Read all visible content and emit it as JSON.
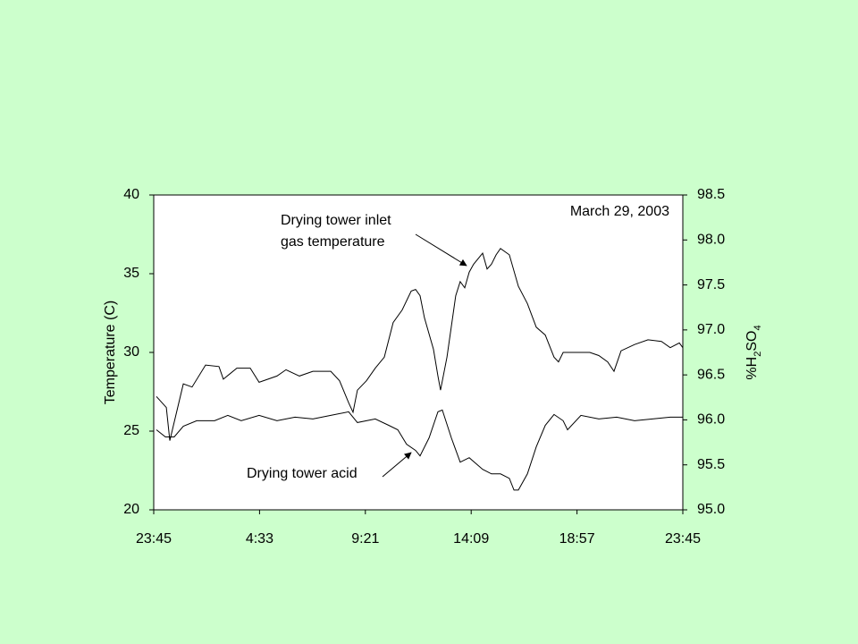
{
  "chart_data": {
    "type": "line",
    "x_axis_kind": "hours",
    "xlim": [
      0,
      24
    ],
    "xticks": [
      {
        "value": 0,
        "label": "23:45"
      },
      {
        "value": 4.8,
        "label": "4:33"
      },
      {
        "value": 9.6,
        "label": "9:21"
      },
      {
        "value": 14.4,
        "label": "14:09"
      },
      {
        "value": 19.2,
        "label": "18:57"
      },
      {
        "value": 24,
        "label": "23:45"
      }
    ],
    "y_label": "Temperature (C)",
    "ylim": [
      20,
      40
    ],
    "yticks": [
      20,
      25,
      30,
      35,
      40
    ],
    "y2_label": [
      "%H",
      "2",
      "SO",
      "4"
    ],
    "y2lim": [
      95,
      98.5
    ],
    "y2ticks": [
      {
        "value": 95,
        "label": "95.0"
      },
      95.5,
      {
        "value": 96,
        "label": "96.0"
      },
      96.5,
      {
        "value": 97,
        "label": "97.0"
      },
      97.5,
      {
        "value": 98,
        "label": "98.0"
      },
      98.5
    ],
    "annotations": [
      [
        "Drying tower inlet",
        "gas temperature"
      ],
      [
        "Drying tower acid"
      ],
      [
        "March 29, 2003"
      ]
    ],
    "series": [
      {
        "color": "#000000",
        "axis": "y",
        "x": [
          0.12,
          0.57,
          0.73,
          1.34,
          1.74,
          2.35,
          2.96,
          3.16,
          3.77,
          4.38,
          4.78,
          5.59,
          6.0,
          6.61,
          7.22,
          8.03,
          8.43,
          8.84,
          9.04,
          9.24,
          9.65,
          10.05,
          10.46,
          10.86,
          11.27,
          11.68,
          11.88,
          12.08,
          12.28,
          12.69,
          12.89,
          13.01,
          13.3,
          13.7,
          13.9,
          14.11,
          14.31,
          14.51,
          14.92,
          15.12,
          15.32,
          15.53,
          15.73,
          16.13,
          16.54,
          16.95,
          17.35,
          17.76,
          18.16,
          18.36,
          18.57,
          19.18,
          19.78,
          20.19,
          20.59,
          20.88,
          21.2,
          21.81,
          22.42,
          23.03,
          23.43,
          23.84,
          24
        ],
        "values": [
          27.2,
          26.5,
          24.4,
          28.0,
          27.8,
          29.2,
          29.1,
          28.3,
          29.0,
          29.0,
          28.1,
          28.5,
          28.9,
          28.5,
          28.8,
          28.8,
          28.2,
          26.8,
          26.2,
          27.6,
          28.2,
          29.0,
          29.7,
          31.9,
          32.7,
          33.9,
          34.0,
          33.6,
          32.2,
          30.2,
          28.5,
          27.6,
          29.7,
          33.6,
          34.5,
          34.1,
          35.1,
          35.6,
          36.3,
          35.3,
          35.6,
          36.2,
          36.6,
          36.2,
          34.2,
          33.1,
          31.6,
          31.1,
          29.7,
          29.4,
          30.0,
          30.0,
          30.0,
          29.8,
          29.4,
          28.8,
          30.1,
          30.5,
          30.8,
          30.7,
          30.3,
          30.6,
          30.3
        ]
      },
      {
        "color": "#000000",
        "axis": "y2",
        "x": [
          0.12,
          0.53,
          0.93,
          1.34,
          1.95,
          2.76,
          3.36,
          3.97,
          4.78,
          5.59,
          6.41,
          7.22,
          8.03,
          8.84,
          9.24,
          10.05,
          10.66,
          11.07,
          11.47,
          11.88,
          12.08,
          12.49,
          12.89,
          13.09,
          13.5,
          13.9,
          14.31,
          14.92,
          15.32,
          15.73,
          16.13,
          16.34,
          16.54,
          16.95,
          17.35,
          17.76,
          18.16,
          18.57,
          18.77,
          19.38,
          20.19,
          21.0,
          21.81,
          22.62,
          23.43,
          24
        ],
        "values": [
          95.89,
          95.81,
          95.81,
          95.93,
          95.99,
          95.99,
          96.05,
          95.99,
          96.05,
          95.99,
          96.03,
          96.01,
          96.05,
          96.09,
          95.97,
          96.01,
          95.94,
          95.89,
          95.73,
          95.66,
          95.6,
          95.8,
          96.09,
          96.11,
          95.8,
          95.53,
          95.58,
          95.45,
          95.4,
          95.4,
          95.35,
          95.22,
          95.22,
          95.4,
          95.7,
          95.94,
          96.06,
          95.99,
          95.89,
          96.05,
          96.01,
          96.03,
          95.99,
          96.01,
          96.03,
          96.03
        ]
      }
    ]
  }
}
